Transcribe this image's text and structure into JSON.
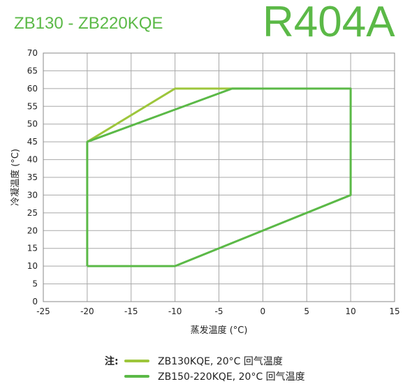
{
  "header": {
    "model": "ZB130 - ZB220KQE",
    "refrigerant": "R404A"
  },
  "chart_data": {
    "type": "line",
    "xlabel": "蒸发温度 (°C)",
    "ylabel": "冷凝温度 (°C)",
    "xlim": [
      -25,
      15
    ],
    "ylim": [
      0,
      70
    ],
    "xticks": [
      -25,
      -20,
      -15,
      -10,
      -5,
      0,
      5,
      10,
      15
    ],
    "yticks": [
      0,
      5,
      10,
      15,
      20,
      25,
      30,
      35,
      40,
      45,
      50,
      55,
      60,
      65,
      70
    ],
    "grid": true,
    "legend_placement": "bottom",
    "series": [
      {
        "name": "ZB130KQE, 20°C 回气温度",
        "color": "#9dc63b",
        "points": [
          [
            -20,
            45
          ],
          [
            -10,
            60
          ],
          [
            -1.5,
            60
          ]
        ]
      },
      {
        "name": "ZB150-220KQE, 20°C 回气温度",
        "color": "#5bb947",
        "points": [
          [
            -20,
            10
          ],
          [
            -10,
            10
          ],
          [
            10,
            30
          ],
          [
            10,
            60
          ],
          [
            -3.5,
            60
          ],
          [
            -20,
            45
          ],
          [
            -20,
            10
          ]
        ]
      }
    ]
  },
  "legend": {
    "note": "注:"
  }
}
